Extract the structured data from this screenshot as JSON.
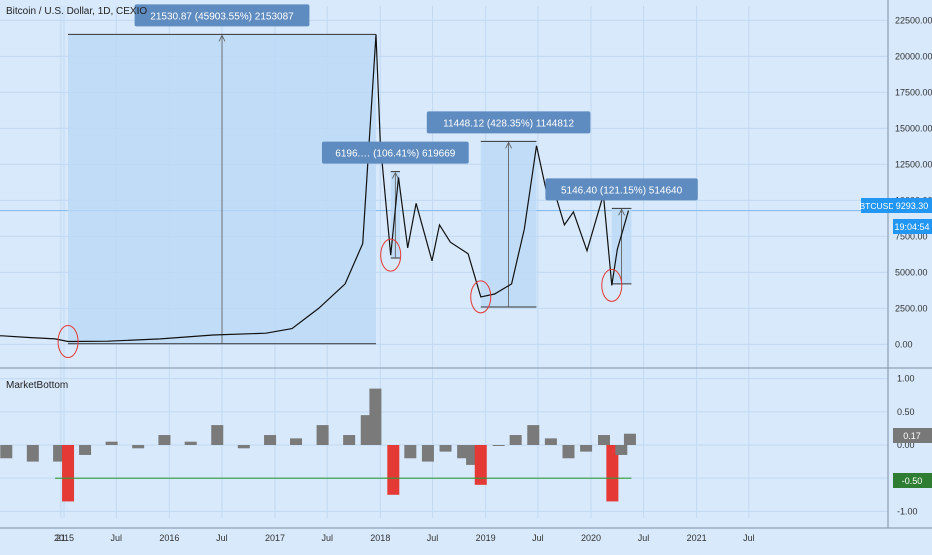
{
  "header": {
    "symbol_title": "Bitcoin / U.S. Dollar, 1D, CEXIO",
    "indicator_title": "MarketBottom"
  },
  "price_badge": {
    "ticker": "BTCUSD",
    "price": "9293.30",
    "countdown": "19:04:54",
    "color": "#2196f3"
  },
  "indicator_badges": {
    "value": "0.17",
    "value_color": "#787878",
    "threshold": "-0.50",
    "threshold_color": "#2e7d32"
  },
  "colors": {
    "background": "#d7e9fb",
    "grid": "#c2d9f2",
    "price_line": "#111111",
    "box_fill": "#bcd8f5",
    "label_fill": "#5e8bc0",
    "oscillator_bar": "#7a7a7a",
    "signal_bar": "#e53935",
    "threshold_line": "#2e9b3c",
    "circle": "#e53935"
  },
  "chart_data": [
    {
      "type": "line",
      "series": [
        {
          "x": [
            "2014-03-01",
            "2014-06-01",
            "2014-09-01",
            "2014-12-01",
            "2015-01-15",
            "2015-06-01",
            "2015-12-01",
            "2016-06-01",
            "2016-12-01",
            "2017-03-01",
            "2017-06-01",
            "2017-09-01",
            "2017-11-01",
            "2017-12-17",
            "2018-01-01",
            "2018-02-06",
            "2018-03-05",
            "2018-04-06",
            "2018-05-05",
            "2018-06-29",
            "2018-07-25",
            "2018-09-01",
            "2018-11-01",
            "2018-12-15",
            "2019-02-01",
            "2019-04-01",
            "2019-05-15",
            "2019-06-26",
            "2019-08-01",
            "2019-09-01",
            "2019-10-01",
            "2019-11-01",
            "2019-12-18",
            "2020-02-13",
            "2020-03-13",
            "2020-04-01",
            "2020-05-10"
          ],
          "y": [
            600,
            600,
            480,
            380,
            200,
            220,
            380,
            650,
            780,
            1100,
            2500,
            4200,
            7000,
            21530,
            14000,
            6196,
            11600,
            6700,
            9800,
            5800,
            8300,
            7100,
            6300,
            3300,
            3500,
            4200,
            8000,
            13800,
            10500,
            10300,
            8300,
            9200,
            6500,
            10400,
            4100,
            6600,
            9293
          ]
        }
      ],
      "annotations": [
        "21530.87 (45903.55%) 2153087",
        "6196.… (106.41%) 619669",
        "11448.12 (428.35%) 1144812",
        "5146.40 (121.15%) 514640"
      ],
      "measure_boxes": [
        {
          "x_start": "2015-01-15",
          "x_end": "2017-12-17",
          "y_low": 47,
          "y_high": 21530,
          "label_index": 0
        },
        {
          "x_start": "2018-02-06",
          "x_end": "2018-03-10",
          "y_low": 6000,
          "y_high": 12000,
          "label_index": 1
        },
        {
          "x_start": "2018-12-15",
          "x_end": "2019-06-26",
          "y_low": 2600,
          "y_high": 14100,
          "label_index": 2
        },
        {
          "x_start": "2020-03-13",
          "x_end": "2020-05-20",
          "y_low": 4200,
          "y_high": 9450,
          "label_index": 3
        }
      ],
      "circled_points": [
        "2015-01-15",
        "2018-02-06",
        "2018-12-15",
        "2020-03-13"
      ],
      "y_ticks": [
        "22500.00",
        "20000.00",
        "17500.00",
        "15000.00",
        "12500.00",
        "10000.00",
        "7500.00",
        "5000.00",
        "2500.00",
        "0.00"
      ],
      "ylim": [
        -1500,
        23500
      ],
      "grid": true
    },
    {
      "type": "bar",
      "name": "MarketBottom",
      "x": [
        "2014-03",
        "2014-06",
        "2014-09",
        "2014-12",
        "2015-01",
        "2015-03",
        "2015-06",
        "2015-09",
        "2015-12",
        "2016-03",
        "2016-06",
        "2016-09",
        "2016-12",
        "2017-03",
        "2017-06",
        "2017-09",
        "2017-11",
        "2017-12",
        "2018-02",
        "2018-04",
        "2018-06",
        "2018-08",
        "2018-10",
        "2018-11",
        "2018-12",
        "2019-02",
        "2019-04",
        "2019-06",
        "2019-08",
        "2019-10",
        "2019-12",
        "2020-02",
        "2020-03",
        "2020-04",
        "2020-05"
      ],
      "y": [
        -0.1,
        -0.2,
        -0.25,
        -0.25,
        -0.85,
        -0.15,
        0.05,
        -0.05,
        0.15,
        0.05,
        0.3,
        -0.05,
        0.15,
        0.1,
        0.3,
        0.15,
        0.45,
        0.85,
        -0.75,
        -0.2,
        -0.25,
        -0.1,
        -0.2,
        -0.3,
        -0.6,
        0.0,
        0.15,
        0.3,
        0.1,
        -0.2,
        -0.1,
        0.15,
        -0.85,
        -0.15,
        0.17
      ],
      "signal_threshold": -0.5,
      "y_ticks": [
        "1.00",
        "0.50",
        "0.00",
        "-0.50",
        "-1.00"
      ],
      "ylim": [
        -1.1,
        1.1
      ]
    }
  ],
  "x_axis": {
    "tick_labels": [
      "21",
      "2015",
      "Jul",
      "2016",
      "Jul",
      "2017",
      "Jul",
      "2018",
      "Jul",
      "2019",
      "Jul",
      "2020",
      "Jul",
      "2021",
      "Jul"
    ]
  }
}
